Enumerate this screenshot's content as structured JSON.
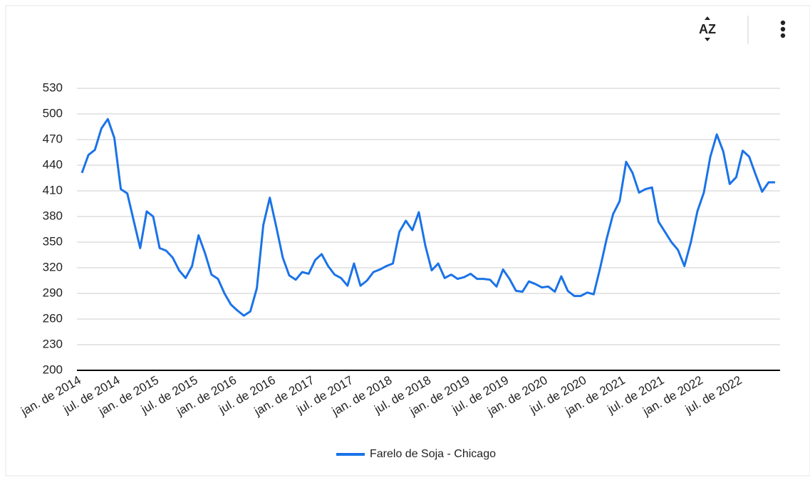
{
  "toolbar": {
    "sort_label": "AZ"
  },
  "chart_data": {
    "type": "line",
    "categories": [
      "jan. de 2014",
      null,
      null,
      null,
      null,
      null,
      "jul. de 2014",
      null,
      null,
      null,
      null,
      null,
      "jan. de 2015",
      null,
      null,
      null,
      null,
      null,
      "jul. de 2015",
      null,
      null,
      null,
      null,
      null,
      "jan. de 2016",
      null,
      null,
      null,
      null,
      null,
      "jul. de 2016",
      null,
      null,
      null,
      null,
      null,
      "jan. de 2017",
      null,
      null,
      null,
      null,
      null,
      "jul. de 2017",
      null,
      null,
      null,
      null,
      null,
      "jan. de 2018",
      null,
      null,
      null,
      null,
      null,
      "jul. de 2018",
      null,
      null,
      null,
      null,
      null,
      "jan. de 2019",
      null,
      null,
      null,
      null,
      null,
      "jul. de 2019",
      null,
      null,
      null,
      null,
      null,
      "jan. de 2020",
      null,
      null,
      null,
      null,
      null,
      "jul. de 2020",
      null,
      null,
      null,
      null,
      null,
      "jan. de 2021",
      null,
      null,
      null,
      null,
      null,
      "jul. de 2021",
      null,
      null,
      null,
      null,
      null,
      "jan. de 2022",
      null,
      null,
      null,
      null,
      null,
      "jul. de 2022",
      null,
      null,
      null,
      null,
      null
    ],
    "series": [
      {
        "name": "Farelo de Soja - Chicago",
        "color": "#1a73e8",
        "values": [
          431,
          452,
          458,
          483,
          494,
          472,
          412,
          407,
          375,
          343,
          386,
          380,
          343,
          340,
          332,
          317,
          308,
          322,
          358,
          337,
          312,
          307,
          290,
          277,
          270,
          264,
          269,
          296,
          370,
          402,
          368,
          332,
          311,
          306,
          315,
          313,
          329,
          336,
          322,
          312,
          308,
          299,
          325,
          299,
          305,
          315,
          318,
          322,
          325,
          362,
          375,
          364,
          385,
          346,
          317,
          325,
          308,
          312,
          307,
          309,
          313,
          307,
          307,
          306,
          298,
          318,
          307,
          293,
          292,
          304,
          301,
          297,
          298,
          292,
          310,
          293,
          287,
          287,
          291,
          289,
          320,
          354,
          383,
          398,
          444,
          431,
          408,
          412,
          414,
          374,
          362,
          350,
          341,
          322,
          350,
          386,
          408,
          450,
          476,
          456,
          418,
          426,
          457,
          450,
          429,
          409,
          420,
          420
        ]
      }
    ],
    "ylim": [
      200,
      530
    ],
    "yticks": [
      200,
      230,
      260,
      290,
      320,
      350,
      380,
      410,
      440,
      470,
      500,
      530
    ],
    "grid": true,
    "legend": "bottom"
  }
}
